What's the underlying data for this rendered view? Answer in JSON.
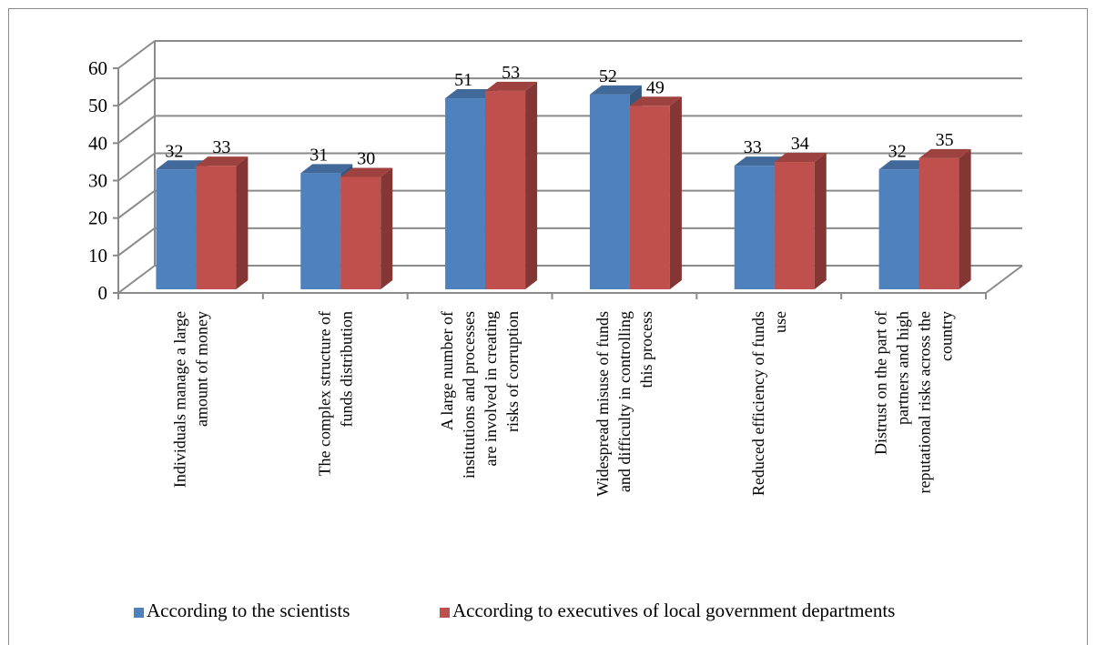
{
  "chart_data": {
    "type": "bar",
    "categories": [
      [
        "Individuals manage a large",
        "amount of money"
      ],
      [
        "The complex structure of",
        "funds distribution"
      ],
      [
        "A large number of",
        "institutions and processes",
        "are involved in creating",
        "risks of corruption"
      ],
      [
        "Widespread misuse of funds",
        "and difficulty in controlling",
        "this process"
      ],
      [
        "Reduced efficiency of funds",
        "use"
      ],
      [
        "Distrust on the part of",
        "partners and high",
        "reputational risks across the",
        "country"
      ]
    ],
    "series": [
      {
        "name": "According to the scientists",
        "values": [
          32,
          31,
          51,
          52,
          33,
          32
        ],
        "color": "#4f81bd"
      },
      {
        "name": "According to executives of local government departments",
        "values": [
          33,
          30,
          53,
          49,
          34,
          35
        ],
        "color": "#c0504d"
      }
    ],
    "ylim": [
      0,
      60
    ],
    "yticks": [
      "0",
      "10",
      "20",
      "30",
      "40",
      "50",
      "60"
    ],
    "grid": true,
    "legend": "bottom",
    "data_labels": true
  }
}
